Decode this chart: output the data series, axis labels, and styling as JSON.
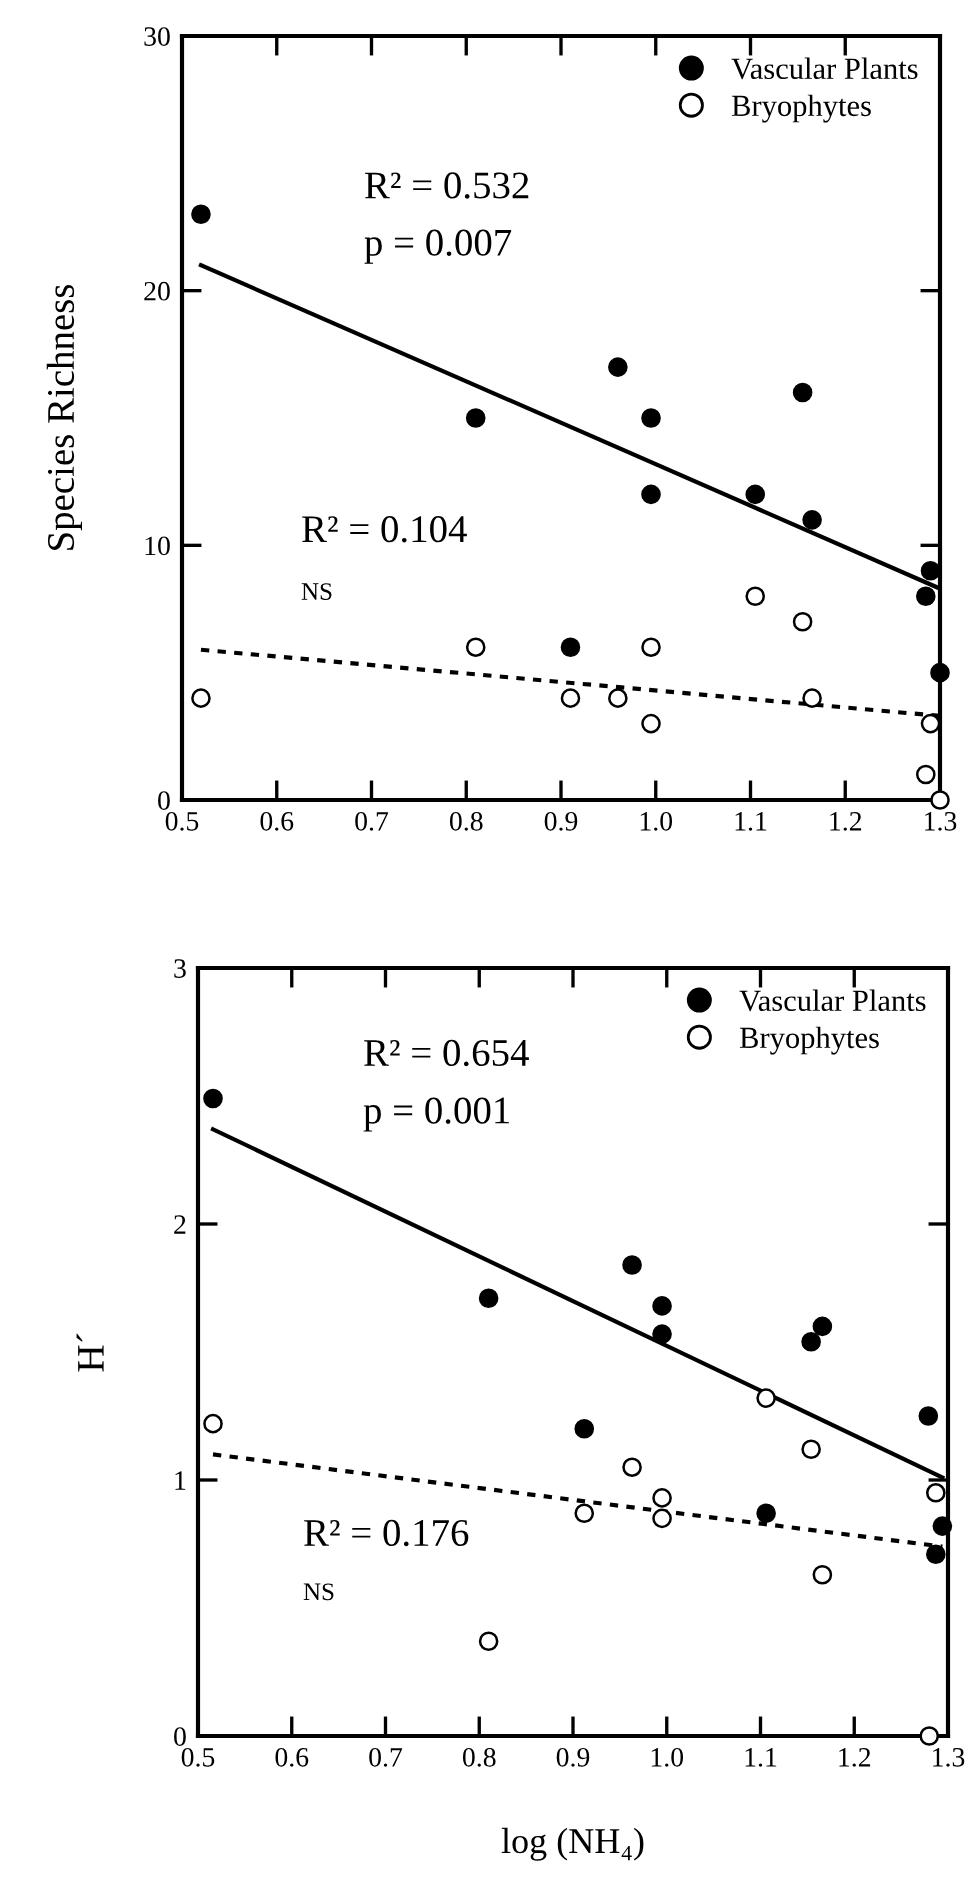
{
  "chart_data": [
    {
      "type": "scatter",
      "ylabel": "Species Richness",
      "xlim": [
        0.5,
        1.3
      ],
      "ylim": [
        0,
        30
      ],
      "xticks": [
        0.5,
        0.6,
        0.7,
        0.8,
        0.9,
        {
          "value": 1.0,
          "label": "1.0"
        },
        1.1,
        1.2,
        1.3
      ],
      "yticks": [
        0,
        10,
        20,
        30
      ],
      "legend": "top right",
      "marker": "circle",
      "grid": false,
      "annotations": [
        "R² = 0.532",
        "p = 0.007",
        "R² = 0.104",
        "NS"
      ],
      "series": [
        {
          "name": "Vascular Plants",
          "color": "#000000",
          "x": [
            0.52,
            0.81,
            0.91,
            0.96,
            0.995,
            0.995,
            1.105,
            1.155,
            1.165,
            1.285,
            1.29,
            1.3
          ],
          "values": [
            23,
            15,
            6,
            17,
            15,
            12,
            12,
            16,
            11,
            8,
            9,
            5
          ]
        },
        {
          "name": "Bryophytes",
          "color": "#ffffff",
          "x": [
            0.52,
            0.81,
            0.91,
            0.96,
            0.995,
            0.995,
            1.105,
            1.155,
            1.165,
            1.285,
            1.29,
            1.3
          ],
          "values": [
            4,
            6,
            4,
            4,
            6,
            3,
            8,
            7,
            4,
            1,
            3,
            0
          ]
        },
        {
          "type": "line",
          "color": "#000000",
          "line_style": "solid",
          "marker": "none",
          "x": [
            0.52,
            1.3
          ],
          "values": [
            21,
            8.3
          ]
        },
        {
          "type": "line",
          "color": "#000000",
          "line_style": "dotted",
          "marker": "none",
          "x": [
            0.52,
            1.3
          ],
          "values": [
            5.9,
            3.3
          ]
        }
      ]
    },
    {
      "type": "scatter",
      "xlabel": "log (NH₄)",
      "ylabel": "H´",
      "xlim": [
        0.5,
        1.3
      ],
      "ylim": [
        0,
        3
      ],
      "xticks": [
        0.5,
        0.6,
        0.7,
        0.8,
        0.9,
        {
          "value": 1.0,
          "label": "1.0"
        },
        1.1,
        1.2,
        1.3
      ],
      "yticks": [
        0,
        1,
        2,
        3
      ],
      "legend": "top right",
      "marker": "circle",
      "grid": false,
      "annotations": [
        "R² = 0.654",
        "p = 0.001",
        "R² = 0.176",
        "NS"
      ],
      "series": [
        {
          "name": "Vascular Plants",
          "color": "#000000",
          "x": [
            0.516,
            0.81,
            0.912,
            0.963,
            0.995,
            0.995,
            1.106,
            1.154,
            1.166,
            1.279,
            1.287,
            1.294
          ],
          "values": [
            2.49,
            1.71,
            1.2,
            1.84,
            1.68,
            1.57,
            0.87,
            1.54,
            1.6,
            1.25,
            0.71,
            0.82
          ]
        },
        {
          "name": "Bryophytes",
          "color": "#ffffff",
          "x": [
            0.516,
            0.81,
            0.912,
            0.963,
            0.995,
            0.995,
            1.106,
            1.154,
            1.166,
            1.28,
            1.287
          ],
          "values": [
            1.22,
            0.37,
            0.87,
            1.05,
            0.93,
            0.85,
            1.32,
            1.12,
            0.63,
            0.0,
            0.95
          ]
        },
        {
          "type": "line",
          "color": "#000000",
          "line_style": "solid",
          "marker": "none",
          "x": [
            0.516,
            1.294
          ],
          "values": [
            2.37,
            1.01
          ]
        },
        {
          "type": "line",
          "color": "#000000",
          "line_style": "dotted",
          "marker": "none",
          "x": [
            0.516,
            1.294
          ],
          "values": [
            1.1,
            0.74
          ]
        }
      ]
    }
  ]
}
